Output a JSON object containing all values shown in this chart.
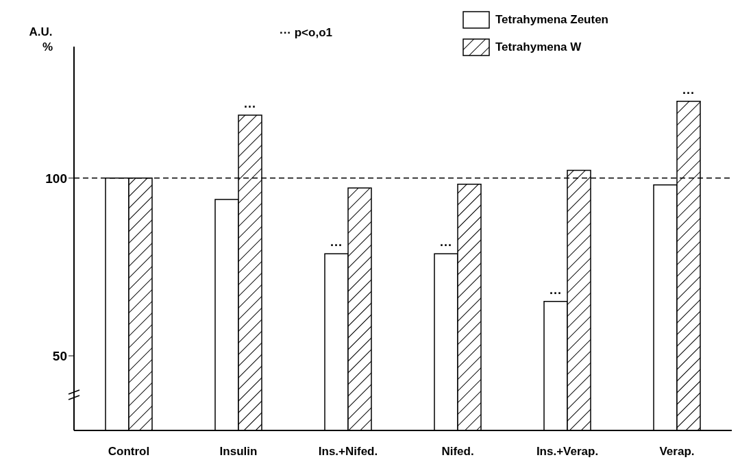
{
  "chart_data": {
    "type": "bar",
    "ylabel": "A.U. %",
    "categories": [
      "Control",
      "Insulin",
      "Ins.+Nifed.",
      "Nifed.",
      "Ins.+Verap.",
      "Verap."
    ],
    "series": [
      {
        "name": "Tetrahymena Zeuten",
        "color": "#ffffff",
        "values": [
          100,
          94,
          78.7,
          78.7,
          65.3,
          98.1
        ]
      },
      {
        "name": "Tetrahymena W",
        "color": "#000000",
        "values": [
          100,
          117.7,
          97.2,
          98.3,
          102.2,
          121.6
        ]
      }
    ],
    "ylim": [
      29,
      137
    ],
    "yticks": [
      50,
      100
    ],
    "ref_lines": [
      {
        "axis": "y",
        "value": 100,
        "line_style": "dashed"
      }
    ],
    "annotations": [
      "··· p<o,o1",
      {
        "text": "···",
        "x": "Insulin",
        "y": 117.7
      },
      {
        "text": "···",
        "x": "Ins.+Nifed.",
        "y": 78.7
      },
      {
        "text": "···",
        "x": "Nifed.",
        "y": 78.7
      },
      {
        "text": "···",
        "x": "Ins.+Verap.",
        "y": 65.3
      },
      {
        "text": "···",
        "x": "Verap.",
        "y": 121.6
      }
    ],
    "grid": false,
    "legend": "top right"
  }
}
